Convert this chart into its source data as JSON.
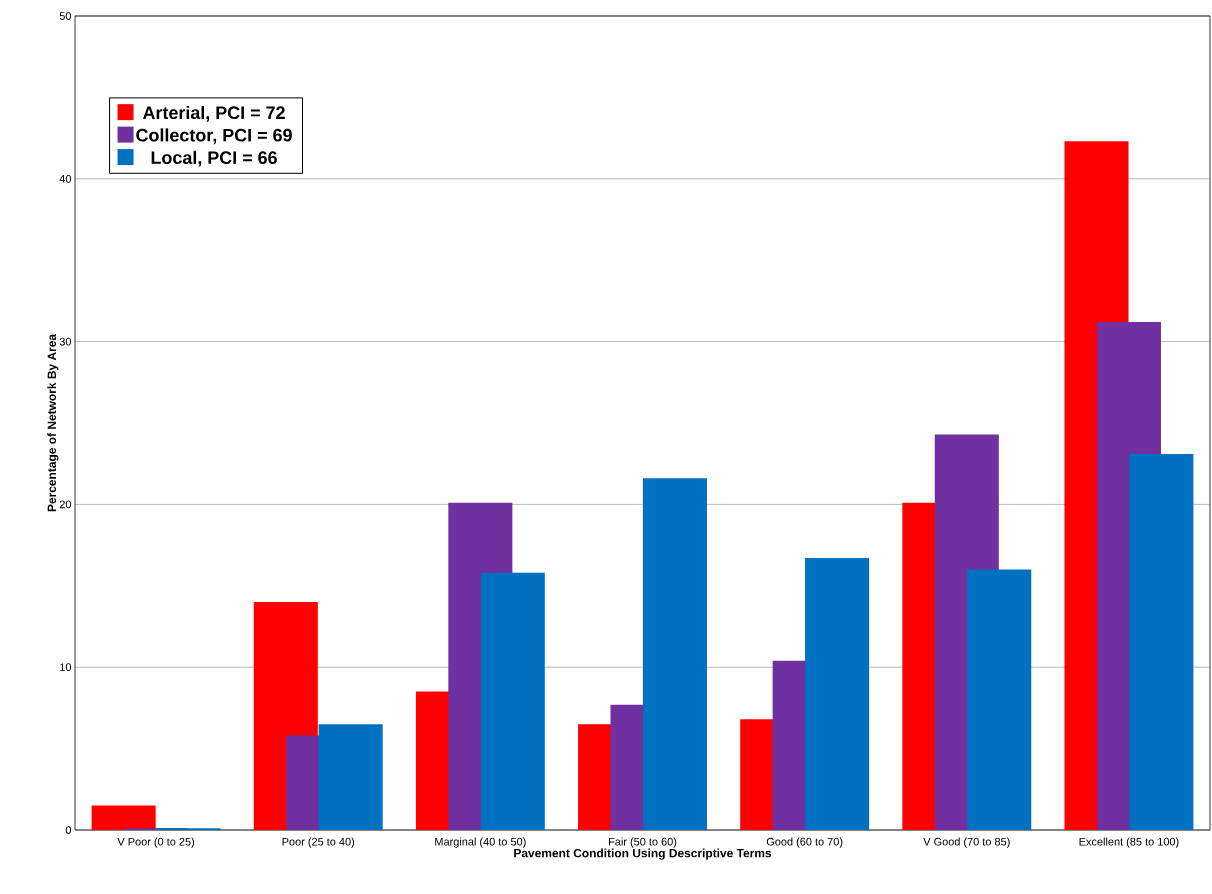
{
  "chart_data": {
    "type": "bar",
    "xlabel": "Pavement Condition Using Descriptive Terms",
    "ylabel": "Percentage of Network By Area",
    "categories": [
      "V Poor (0 to 25)",
      "Poor (25 to 40)",
      "Marginal (40 to 50)",
      "Fair (50 to 60)",
      "Good (60 to 70)",
      "V Good (70 to 85)",
      "Excellent (85 to 100)"
    ],
    "series": [
      {
        "name": "Arterial, PCI = 72",
        "color": "#ff0000",
        "values": [
          1.5,
          14.0,
          8.5,
          6.5,
          6.8,
          20.1,
          42.3
        ]
      },
      {
        "name": "Collector, PCI = 69",
        "color": "#7030a0",
        "values": [
          0.1,
          5.8,
          20.1,
          7.7,
          10.4,
          24.3,
          31.2
        ]
      },
      {
        "name": "Local, PCI = 66",
        "color": "#0070c0",
        "values": [
          0.1,
          6.5,
          15.8,
          21.6,
          16.7,
          16.0,
          23.1
        ]
      }
    ],
    "ylim": [
      0,
      50
    ],
    "yticks": [
      0,
      10,
      20,
      30,
      40,
      50
    ],
    "grid": "y",
    "legend": "top left"
  }
}
